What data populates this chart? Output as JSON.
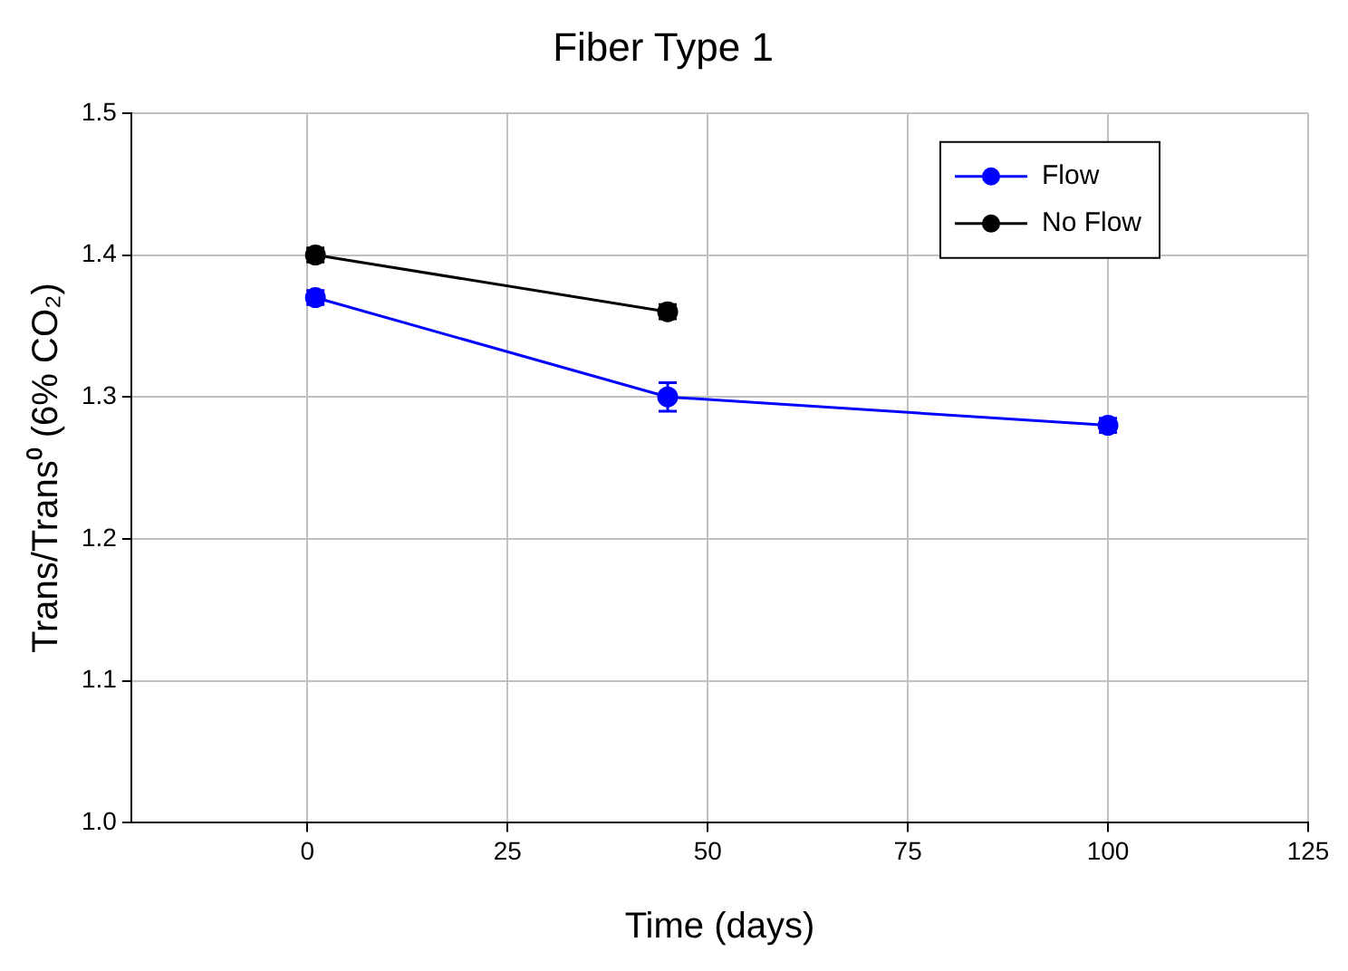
{
  "chart_data": {
    "type": "line",
    "title": "Fiber Type 1",
    "xlabel": "Time (days)",
    "ylabel": "Trans/Trans⁰ (6% CO₂)",
    "series": [
      {
        "name": "Flow",
        "color": "#0000ff",
        "x": [
          1,
          45,
          100
        ],
        "values": [
          1.37,
          1.3,
          1.28
        ],
        "errors": [
          0.005,
          0.01,
          0.005
        ]
      },
      {
        "name": "No Flow",
        "color": "#000000",
        "x": [
          1,
          45
        ],
        "values": [
          1.4,
          1.36
        ],
        "errors": [
          0.005,
          0.005
        ]
      }
    ],
    "xlim": [
      -22,
      125
    ],
    "xticks": [
      0,
      25,
      50,
      75,
      100,
      125
    ],
    "ylim": [
      1,
      1.5
    ],
    "yticks": [
      {
        "value": 1,
        "label": "1.0"
      },
      1.1,
      1.2,
      1.3,
      1.4,
      {
        "value": 1.5,
        "label": "1.5"
      }
    ],
    "grid": true,
    "legend": "top right",
    "marker": "circle",
    "line_style": "solid"
  }
}
